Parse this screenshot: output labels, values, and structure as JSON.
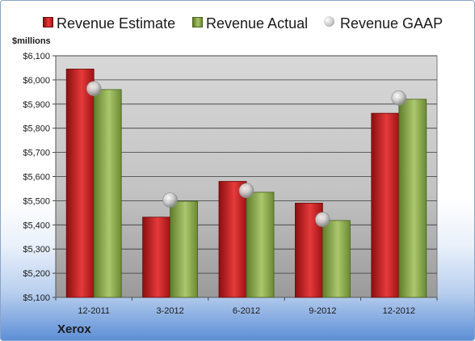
{
  "unit_label": "$millions",
  "company": "Xerox",
  "colors": {
    "estimate": "#d42a2b",
    "actual": "#8fae52",
    "gaap": "#bcbcbc",
    "plot_bg_top": "#d8d8d8",
    "plot_bg_bottom": "#9a9a9a",
    "grid": "#3a3a3a"
  },
  "legend": {
    "items": [
      {
        "label": "Revenue Estimate",
        "marker": "square-red"
      },
      {
        "label": "Revenue Actual",
        "marker": "square-green"
      },
      {
        "label": "Revenue GAAP",
        "marker": "circle-gray"
      }
    ]
  },
  "chart_data": {
    "type": "bar",
    "categories": [
      "12-2011",
      "3-2012",
      "6-2012",
      "9-2012",
      "12-2012"
    ],
    "series": [
      {
        "name": "Revenue Estimate",
        "type": "bar",
        "values": [
          6045,
          5432,
          5580,
          5490,
          5862
        ]
      },
      {
        "name": "Revenue Actual",
        "type": "bar",
        "values": [
          5960,
          5498,
          5535,
          5418,
          5920
        ]
      },
      {
        "name": "Revenue GAAP",
        "type": "scatter",
        "values": [
          5964,
          5503,
          5542,
          5422,
          5925
        ]
      }
    ],
    "ylabel": "$millions",
    "ylim": [
      5100,
      6100
    ],
    "yticks": [
      5100,
      5200,
      5300,
      5400,
      5500,
      5600,
      5700,
      5800,
      5900,
      6000,
      6100
    ],
    "ytick_labels": [
      "$5,100",
      "$5,200",
      "$5,300",
      "$5,400",
      "$5,500",
      "$5,600",
      "$5,700",
      "$5,800",
      "$5,900",
      "$6,000",
      "$6,100"
    ],
    "grid": true,
    "legend_position": "top"
  }
}
